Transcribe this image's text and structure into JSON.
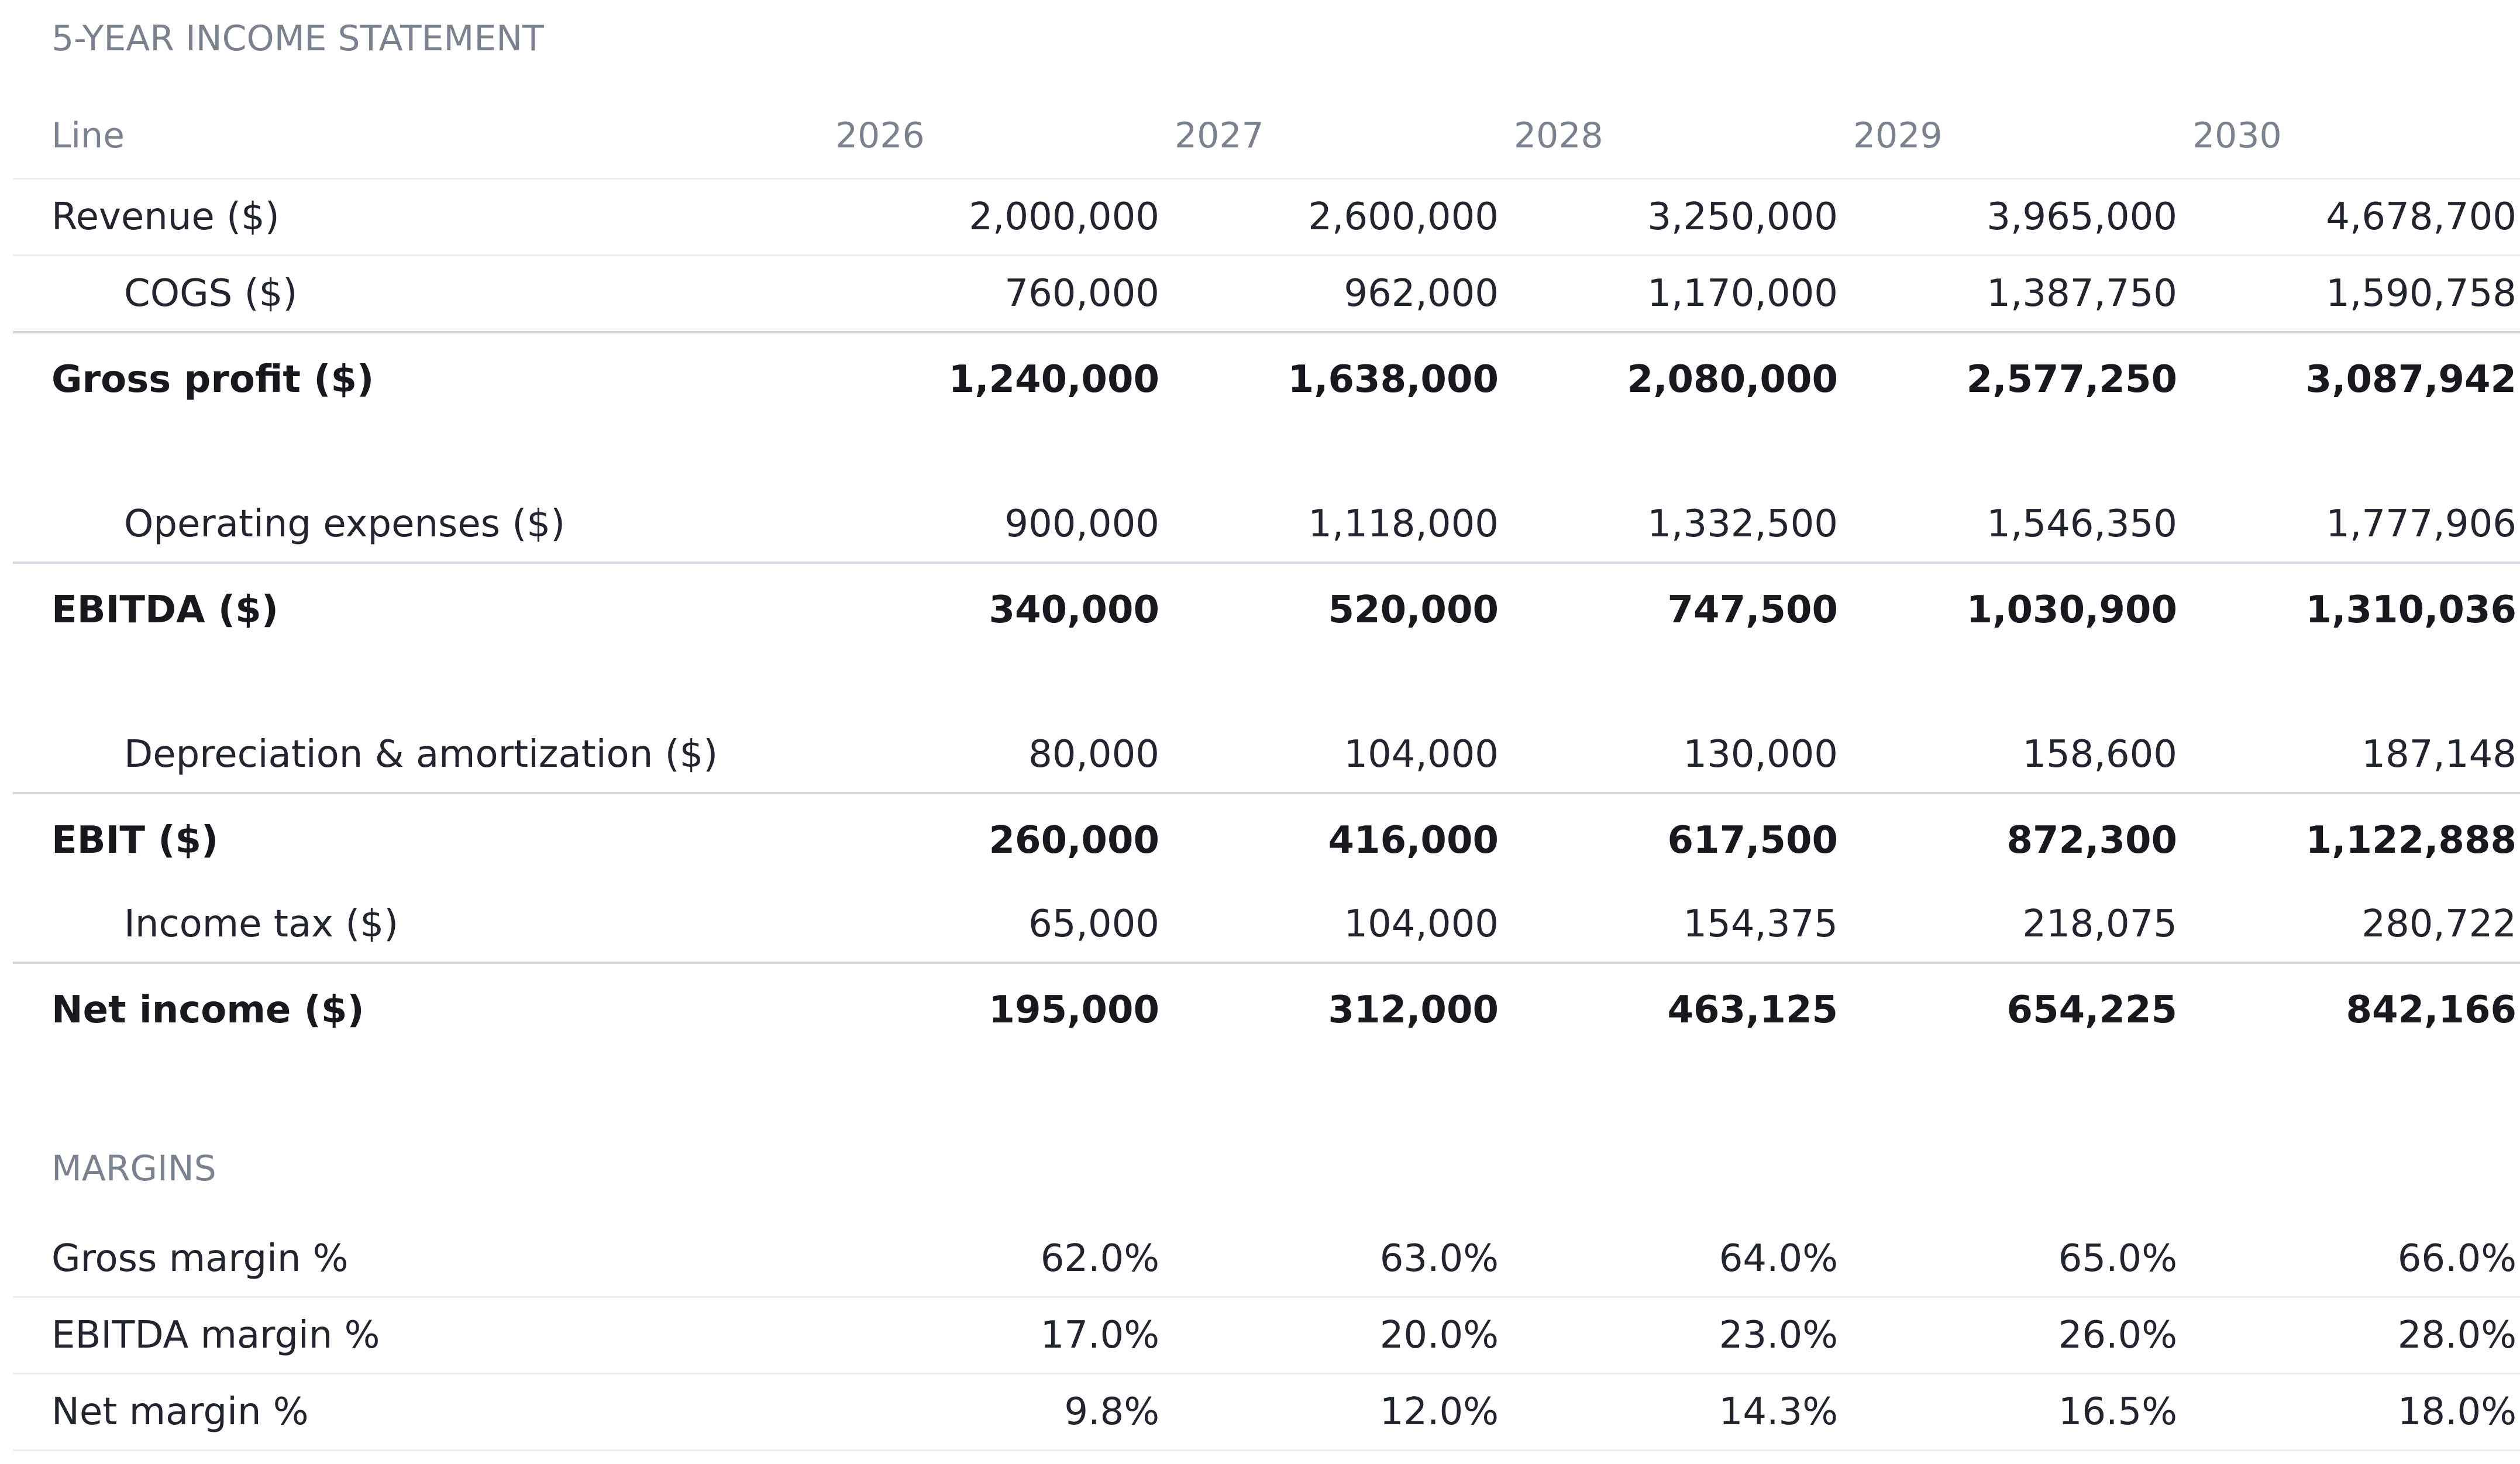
{
  "income_statement": {
    "section_title": "5-YEAR INCOME STATEMENT",
    "header": {
      "label": "Line",
      "years": [
        "2026",
        "2027",
        "2028",
        "2029",
        "2030"
      ]
    },
    "rows": [
      {
        "label": "Revenue ($)",
        "values": [
          "2,000,000",
          "2,600,000",
          "3,250,000",
          "3,965,000",
          "4,678,700"
        ]
      },
      {
        "label": "COGS ($)",
        "values": [
          "760,000",
          "962,000",
          "1,170,000",
          "1,387,750",
          "1,590,758"
        ]
      },
      {
        "label": "Gross profit ($)",
        "values": [
          "1,240,000",
          "1,638,000",
          "2,080,000",
          "2,577,250",
          "3,087,942"
        ]
      },
      {
        "label": "Operating expenses ($)",
        "values": [
          "900,000",
          "1,118,000",
          "1,332,500",
          "1,546,350",
          "1,777,906"
        ]
      },
      {
        "label": "EBITDA ($)",
        "values": [
          "340,000",
          "520,000",
          "747,500",
          "1,030,900",
          "1,310,036"
        ]
      },
      {
        "label": "Depreciation & amortization ($)",
        "values": [
          "80,000",
          "104,000",
          "130,000",
          "158,600",
          "187,148"
        ]
      },
      {
        "label": "EBIT ($)",
        "values": [
          "260,000",
          "416,000",
          "617,500",
          "872,300",
          "1,122,888"
        ]
      },
      {
        "label": "Income tax ($)",
        "values": [
          "65,000",
          "104,000",
          "154,375",
          "218,075",
          "280,722"
        ]
      },
      {
        "label": "Net income ($)",
        "values": [
          "195,000",
          "312,000",
          "463,125",
          "654,225",
          "842,166"
        ]
      }
    ]
  },
  "margins": {
    "section_title": "MARGINS",
    "rows": [
      {
        "label": "Gross margin %",
        "values": [
          "62.0%",
          "63.0%",
          "64.0%",
          "65.0%",
          "66.0%"
        ]
      },
      {
        "label": "EBITDA margin %",
        "values": [
          "17.0%",
          "20.0%",
          "23.0%",
          "26.0%",
          "28.0%"
        ]
      },
      {
        "label": "Net margin %",
        "values": [
          "9.8%",
          "12.0%",
          "14.3%",
          "16.5%",
          "18.0%"
        ]
      }
    ]
  },
  "colors": {
    "section_title": "#7c8190",
    "text": "#22252e",
    "strong_text": "#17191f",
    "row_divider": "#eceef1",
    "total_divider": "#d5d8de"
  }
}
